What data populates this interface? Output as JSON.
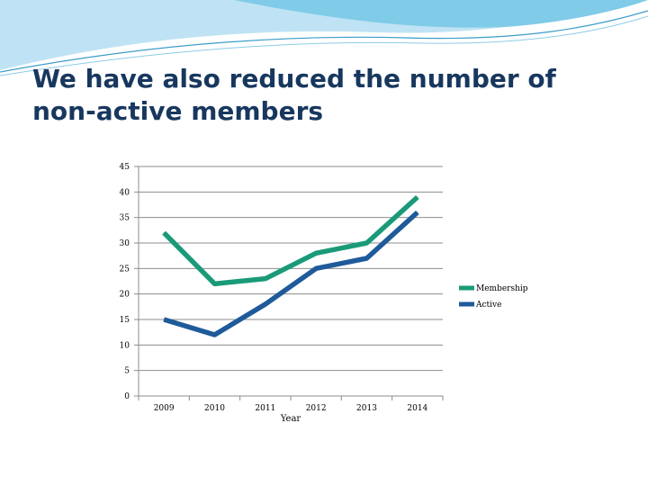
{
  "slide": {
    "title": "We have also reduced the number of non-active members"
  },
  "theme": {
    "accent_light": "#a9d8ef",
    "accent_mid": "#5fbfe0",
    "accent_line": "#2e8fbf"
  },
  "chart_data": {
    "type": "line",
    "title": "",
    "xlabel": "Year",
    "ylabel": "",
    "categories": [
      "2009",
      "2010",
      "2011",
      "2012",
      "2013",
      "2014"
    ],
    "ylim": [
      0,
      45
    ],
    "yticks": [
      0,
      5,
      10,
      15,
      20,
      25,
      30,
      35,
      40,
      45
    ],
    "grid": true,
    "legend_position": "right",
    "series": [
      {
        "name": "Membership",
        "color": "#1a9a78",
        "values": [
          32,
          22,
          23,
          28,
          30,
          39
        ]
      },
      {
        "name": "Active",
        "color": "#1f5a9a",
        "values": [
          15,
          12,
          18,
          25,
          27,
          36
        ]
      }
    ]
  }
}
